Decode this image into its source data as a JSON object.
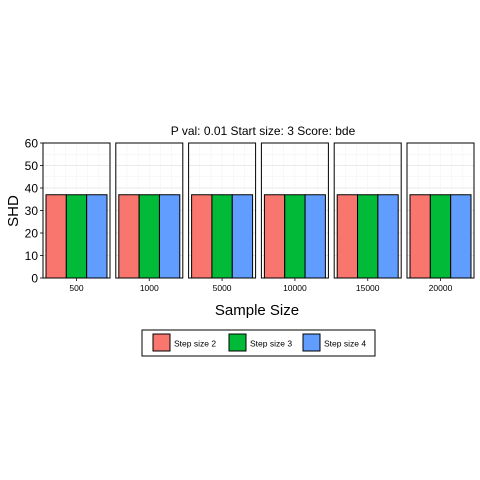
{
  "chart_data": {
    "type": "bar",
    "title": "P val: 0.01 Start size: 3 Score: bde",
    "xlabel": "Sample Size",
    "ylabel": "SHD",
    "ylim": [
      0,
      60
    ],
    "yticks": [
      0,
      10,
      20,
      30,
      40,
      50,
      60
    ],
    "grid": true,
    "legend_position": "bottom",
    "facets": [
      "500",
      "1000",
      "5000",
      "10000",
      "15000",
      "20000"
    ],
    "series": [
      {
        "name": "Step size 2",
        "color": "#F8766D",
        "values": [
          37,
          37,
          37,
          37,
          37,
          37
        ]
      },
      {
        "name": "Step size 3",
        "color": "#00BA38",
        "values": [
          37,
          37,
          37,
          37,
          37,
          37
        ]
      },
      {
        "name": "Step size 4",
        "color": "#619CFF",
        "values": [
          37,
          37,
          37,
          37,
          37,
          37
        ]
      }
    ]
  }
}
